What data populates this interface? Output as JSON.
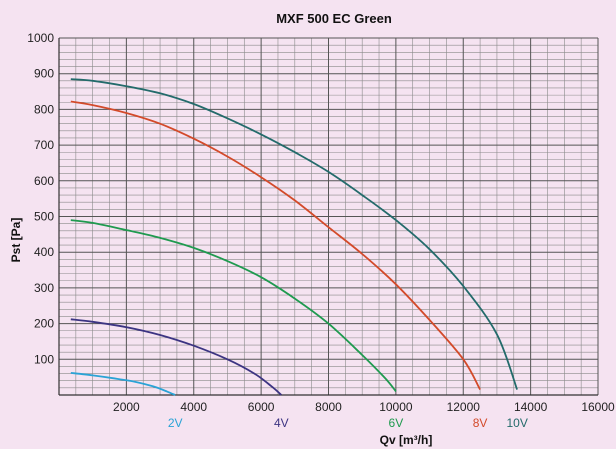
{
  "chart_data": {
    "type": "line",
    "title": "MXF 500 EC Green",
    "xlabel": "Qv [m³/h]",
    "ylabel": "Pst [Pa]",
    "xlim": [
      0,
      16000
    ],
    "ylim": [
      0,
      1000
    ],
    "x_ticks": [
      "2000",
      "4000",
      "6000",
      "8000",
      "10000",
      "12000",
      "14000",
      "16000"
    ],
    "y_ticks": [
      "100",
      "200",
      "300",
      "400",
      "500",
      "600",
      "700",
      "800",
      "900",
      "1000"
    ],
    "grid": true,
    "series": [
      {
        "name": "2V",
        "color": "#2aa3d6",
        "points": [
          [
            350,
            62
          ],
          [
            1000,
            55
          ],
          [
            1600,
            47
          ],
          [
            2200,
            38
          ],
          [
            2800,
            24
          ],
          [
            3200,
            10
          ],
          [
            3450,
            0
          ]
        ]
      },
      {
        "name": "4V",
        "color": "#3c3482",
        "points": [
          [
            350,
            212
          ],
          [
            1000,
            205
          ],
          [
            2000,
            190
          ],
          [
            3000,
            168
          ],
          [
            4000,
            138
          ],
          [
            5000,
            100
          ],
          [
            5800,
            60
          ],
          [
            6300,
            25
          ],
          [
            6600,
            0
          ]
        ]
      },
      {
        "name": "6V",
        "color": "#1f9a4f",
        "points": [
          [
            350,
            490
          ],
          [
            1000,
            482
          ],
          [
            2000,
            462
          ],
          [
            3000,
            440
          ],
          [
            4000,
            412
          ],
          [
            5000,
            375
          ],
          [
            6000,
            330
          ],
          [
            7000,
            270
          ],
          [
            8000,
            200
          ],
          [
            9000,
            112
          ],
          [
            9700,
            45
          ],
          [
            10000,
            10
          ]
        ]
      },
      {
        "name": "8V",
        "color": "#d34a2a",
        "points": [
          [
            350,
            822
          ],
          [
            1000,
            812
          ],
          [
            2000,
            790
          ],
          [
            3000,
            760
          ],
          [
            4000,
            718
          ],
          [
            5000,
            668
          ],
          [
            6000,
            610
          ],
          [
            7000,
            545
          ],
          [
            8000,
            470
          ],
          [
            9000,
            395
          ],
          [
            10000,
            310
          ],
          [
            11000,
            210
          ],
          [
            12000,
            100
          ],
          [
            12500,
            15
          ]
        ]
      },
      {
        "name": "10V",
        "color": "#236b6b",
        "points": [
          [
            350,
            885
          ],
          [
            1000,
            880
          ],
          [
            2000,
            865
          ],
          [
            3000,
            845
          ],
          [
            4000,
            815
          ],
          [
            5000,
            775
          ],
          [
            6000,
            730
          ],
          [
            7000,
            680
          ],
          [
            8000,
            625
          ],
          [
            9000,
            560
          ],
          [
            10000,
            490
          ],
          [
            11000,
            408
          ],
          [
            12000,
            305
          ],
          [
            13000,
            170
          ],
          [
            13600,
            15
          ]
        ]
      }
    ]
  }
}
